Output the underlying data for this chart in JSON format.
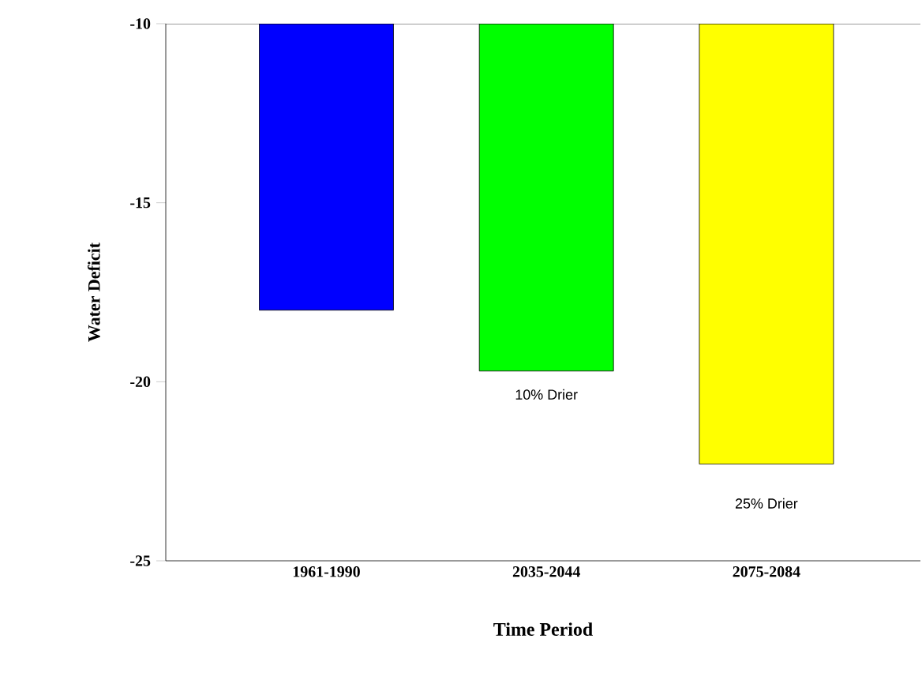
{
  "chart_data": {
    "type": "bar",
    "xlabel": "Time Period",
    "ylabel": "Water Deficit",
    "categories": [
      "1961-1990",
      "2035-2044",
      "2075-2084"
    ],
    "values": [
      -18,
      -19.7,
      -22.3
    ],
    "colors": [
      "#0000ff",
      "#00ff00",
      "#ffff00"
    ],
    "ylim": [
      -25,
      -10
    ],
    "yticks": [
      -25,
      -20,
      -15,
      -10
    ],
    "annotations": [
      "10% Drier",
      "25% Drier"
    ]
  }
}
